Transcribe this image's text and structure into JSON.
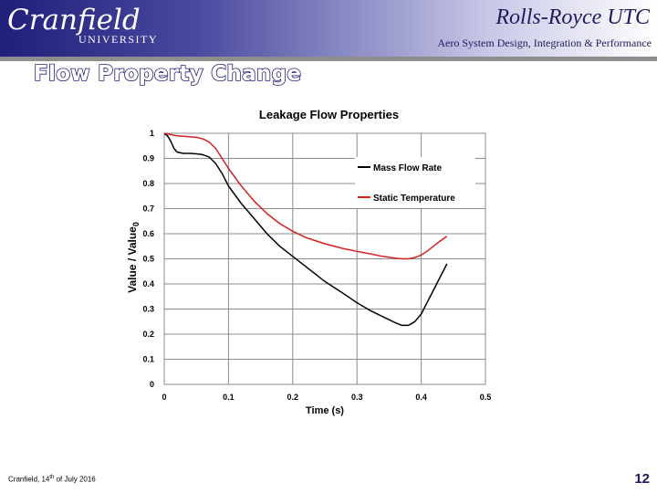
{
  "header": {
    "logo_main": "Cranfield",
    "logo_sub": "UNIVERSITY",
    "org_title": "Rolls-Royce UTC",
    "org_subtitle": "Aero System Design, Integration & Performance"
  },
  "slide": {
    "title": "Flow Property Change"
  },
  "footer": {
    "place": "Cranfield, 14",
    "date_sup": "th",
    "date_rest": " of July 2016",
    "page_number": "12"
  },
  "colors": {
    "header_dark": "#1f1f7a",
    "mass_flow": "#000000",
    "static_temp": "#d62020"
  },
  "chart_data": {
    "type": "line",
    "title": "Leakage Flow Properties",
    "xlabel": "Time (s)",
    "ylabel_main": "Value / Value",
    "ylabel_sub": "0",
    "xlim": [
      0,
      0.5
    ],
    "ylim": [
      0,
      1
    ],
    "x_ticks": [
      0,
      0.1,
      0.2,
      0.3,
      0.4,
      0.5
    ],
    "x_tick_labels": [
      "0",
      "0.1",
      "0.2",
      "0.3",
      "0.4",
      "0.5"
    ],
    "y_ticks": [
      0,
      0.1,
      0.2,
      0.3,
      0.4,
      0.5,
      0.6,
      0.7,
      0.8,
      0.9,
      1
    ],
    "y_tick_labels": [
      "0",
      "0.1",
      "0.2",
      "0.3",
      "0.4",
      "0.5",
      "0.6",
      "0.7",
      "0.8",
      "0.9",
      "1"
    ],
    "grid": true,
    "legend_position": "top-right",
    "series": [
      {
        "name": "Mass Flow Rate",
        "color": "#000000",
        "x": [
          0,
          0.005,
          0.01,
          0.015,
          0.02,
          0.03,
          0.04,
          0.05,
          0.06,
          0.07,
          0.08,
          0.09,
          0.1,
          0.12,
          0.14,
          0.16,
          0.18,
          0.2,
          0.22,
          0.25,
          0.28,
          0.3,
          0.32,
          0.34,
          0.36,
          0.37,
          0.38,
          0.39,
          0.4,
          0.41,
          0.42,
          0.43,
          0.44
        ],
        "y": [
          1.0,
          0.99,
          0.97,
          0.94,
          0.925,
          0.92,
          0.92,
          0.918,
          0.915,
          0.905,
          0.88,
          0.84,
          0.79,
          0.72,
          0.66,
          0.6,
          0.55,
          0.51,
          0.47,
          0.41,
          0.36,
          0.325,
          0.295,
          0.27,
          0.245,
          0.235,
          0.235,
          0.25,
          0.28,
          0.33,
          0.38,
          0.43,
          0.48
        ]
      },
      {
        "name": "Static Temperature",
        "color": "#d62020",
        "x": [
          0,
          0.01,
          0.02,
          0.03,
          0.04,
          0.05,
          0.06,
          0.07,
          0.08,
          0.09,
          0.1,
          0.12,
          0.14,
          0.16,
          0.18,
          0.2,
          0.22,
          0.25,
          0.28,
          0.3,
          0.32,
          0.34,
          0.36,
          0.37,
          0.38,
          0.39,
          0.4,
          0.41,
          0.42,
          0.43,
          0.44
        ],
        "y": [
          1.0,
          0.995,
          0.99,
          0.988,
          0.986,
          0.984,
          0.978,
          0.965,
          0.94,
          0.9,
          0.86,
          0.79,
          0.73,
          0.68,
          0.64,
          0.61,
          0.585,
          0.56,
          0.54,
          0.53,
          0.52,
          0.51,
          0.503,
          0.5,
          0.5,
          0.505,
          0.515,
          0.532,
          0.552,
          0.572,
          0.59
        ]
      }
    ]
  }
}
